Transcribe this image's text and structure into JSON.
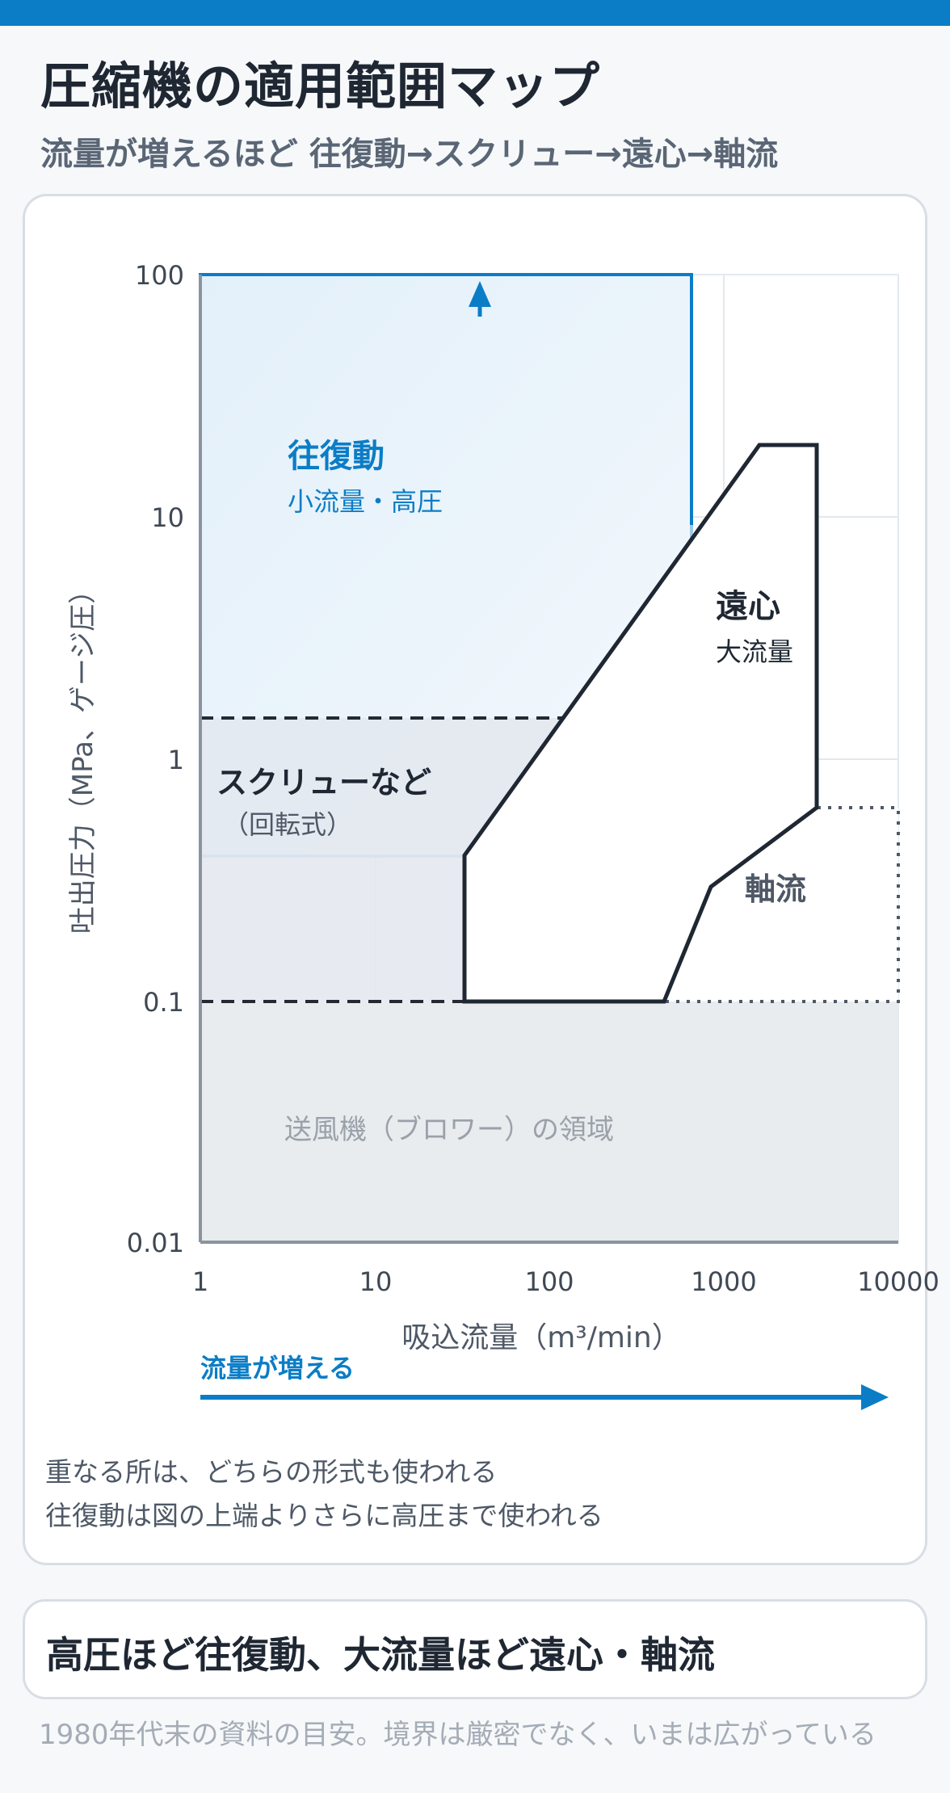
{
  "header": {
    "title": "圧縮機の適用範囲マップ",
    "subtitle": "流量が増えるほど 往復動→スクリュー→遠心→軸流"
  },
  "chart": {
    "y_axis_label": "吐出圧力（MPa、ゲージ圧）",
    "x_axis_label": "吸込流量（m³/min）",
    "y_ticks": [
      "100",
      "10",
      "1",
      "0.1",
      "0.01"
    ],
    "x_ticks": [
      "1",
      "10",
      "100",
      "1000",
      "10000"
    ],
    "regions": {
      "reciprocating": {
        "name": "往復動",
        "desc": "小流量・高圧",
        "flow_range": [
          1,
          650
        ],
        "pressure_range": [
          0.4,
          100
        ],
        "color": "#0b7dc6"
      },
      "screw": {
        "name": "スクリューなど",
        "desc": "（回転式）",
        "flow_range": [
          1,
          300
        ],
        "pressure_range": [
          0.1,
          1.5
        ]
      },
      "centrifugal": {
        "name": "遠心",
        "desc": "大流量",
        "outline": [
          [
            35,
            0.1
          ],
          [
            35,
            0.4
          ],
          [
            1700,
            20
          ],
          [
            3600,
            20
          ],
          [
            3600,
            0.6
          ],
          [
            850,
            0.3
          ],
          [
            500,
            0.1
          ]
        ]
      },
      "axial": {
        "name": "軸流",
        "flow_range": [
          500,
          10000
        ],
        "pressure_range": [
          0.1,
          0.65
        ]
      },
      "blower": {
        "name": "送風機（ブロワー）の領域",
        "pressure_range": [
          0.01,
          0.1
        ]
      }
    },
    "flow_arrow_label": "流量が増える"
  },
  "notes": [
    "重なる所は、どちらの形式も使われる",
    "往復動は図の上端よりさらに高圧まで使われる"
  ],
  "summary": "高圧ほど往復動、大流量ほど遠心・軸流",
  "footnote": "1980年代末の資料の目安。境界は厳密でなく、いまは広がっている"
}
